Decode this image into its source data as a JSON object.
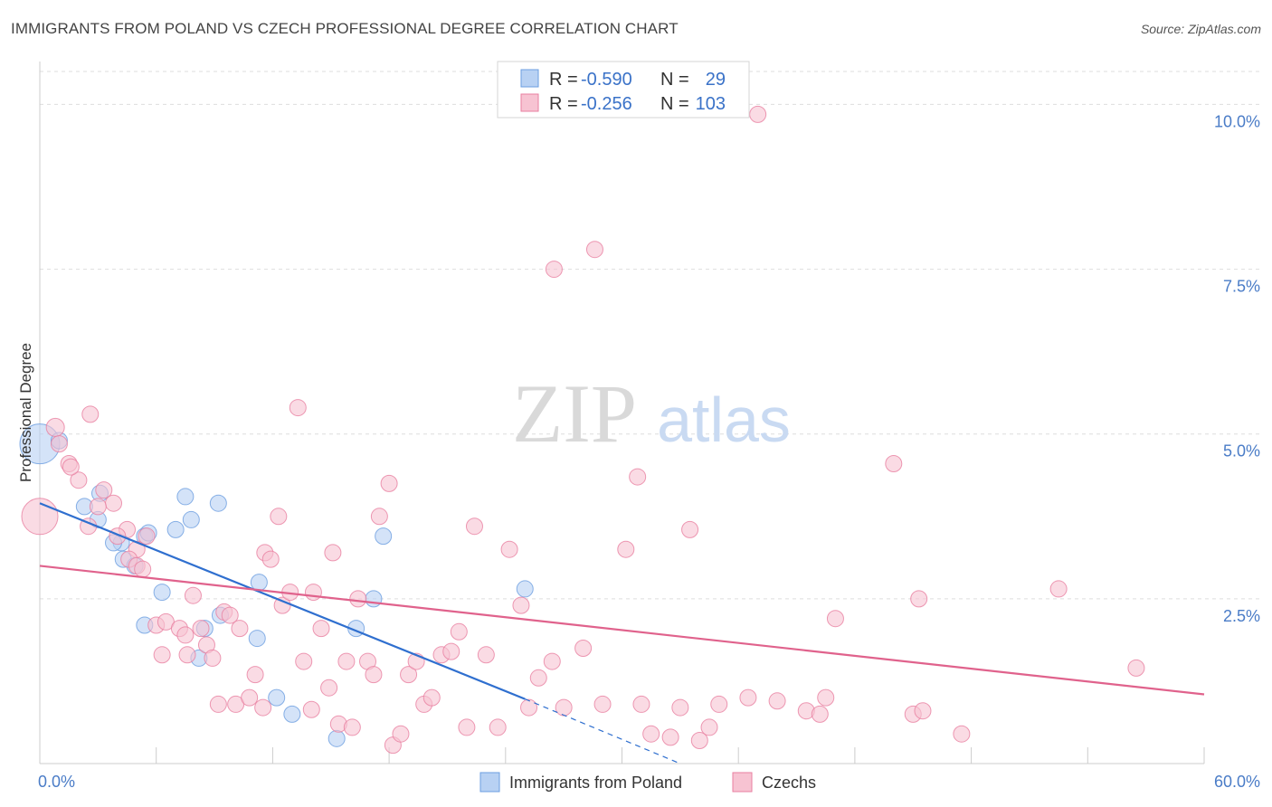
{
  "title": "IMMIGRANTS FROM POLAND VS CZECH PROFESSIONAL DEGREE CORRELATION CHART",
  "source": "Source: ZipAtlas.com",
  "watermark": {
    "zip": "ZIP",
    "atlas": "atlas"
  },
  "chart_data": {
    "type": "scatter",
    "title": "IMMIGRANTS FROM POLAND VS CZECH PROFESSIONAL DEGREE CORRELATION CHART",
    "xlabel": "",
    "ylabel": "Professional Degree",
    "xlim": [
      0,
      60
    ],
    "ylim": [
      0,
      10.5
    ],
    "x_tick_labels": [
      "0.0%",
      "60.0%"
    ],
    "y_ticks": [
      2.5,
      5.0,
      7.5,
      10.0
    ],
    "y_tick_labels": [
      "2.5%",
      "5.0%",
      "7.5%",
      "10.0%"
    ],
    "grid": "horizontal dashed",
    "legend_placement": "top-center",
    "stats": [
      {
        "r_label": "R =",
        "r": "-0.590",
        "n_label": "N =",
        "n": "29"
      },
      {
        "r_label": "R =",
        "r": "-0.256",
        "n_label": "N =",
        "n": "103"
      }
    ],
    "series": [
      {
        "name": "Immigrants from Poland",
        "color": "#6b9ee0",
        "fill": "#b8d1f3",
        "line_color": "#2f6fcf",
        "trend": {
          "x0": 0,
          "y0": 3.95,
          "x1": 25,
          "y1": 0.98,
          "dash_x1": 33,
          "dash_y1": 0.0
        },
        "points": [
          [
            0.0,
            4.85,
            22
          ],
          [
            1.0,
            4.9,
            9
          ],
          [
            2.3,
            3.9,
            9
          ],
          [
            3.1,
            4.1,
            9
          ],
          [
            3.0,
            3.7,
            9
          ],
          [
            4.2,
            3.35,
            9
          ],
          [
            3.8,
            3.35,
            9
          ],
          [
            4.3,
            3.1,
            9
          ],
          [
            4.9,
            3.0,
            9
          ],
          [
            5.4,
            3.45,
            9
          ],
          [
            5.6,
            3.5,
            9
          ],
          [
            7.5,
            4.05,
            9
          ],
          [
            7.8,
            3.7,
            9
          ],
          [
            7.0,
            3.55,
            9
          ],
          [
            9.2,
            3.95,
            9
          ],
          [
            6.3,
            2.6,
            9
          ],
          [
            5.4,
            2.1,
            9
          ],
          [
            8.5,
            2.05,
            9
          ],
          [
            9.3,
            2.25,
            9
          ],
          [
            8.2,
            1.6,
            9
          ],
          [
            11.3,
            2.75,
            9
          ],
          [
            11.2,
            1.9,
            9
          ],
          [
            12.2,
            1.0,
            9
          ],
          [
            13.0,
            0.75,
            9
          ],
          [
            15.3,
            0.38,
            9
          ],
          [
            16.3,
            2.05,
            9
          ],
          [
            17.2,
            2.5,
            9
          ],
          [
            17.7,
            3.45,
            9
          ],
          [
            25.0,
            2.65,
            9
          ]
        ]
      },
      {
        "name": "Czechs",
        "color": "#e87fa0",
        "fill": "#f7c3d2",
        "line_color": "#e0628c",
        "trend": {
          "x0": 0,
          "y0": 3.0,
          "x1": 60,
          "y1": 1.05
        },
        "points": [
          [
            0.0,
            3.75,
            20
          ],
          [
            0.8,
            5.1,
            10
          ],
          [
            1.0,
            4.85,
            9
          ],
          [
            2.6,
            5.3,
            9
          ],
          [
            1.5,
            4.55,
            9
          ],
          [
            2.0,
            4.3,
            9
          ],
          [
            1.6,
            4.5,
            9
          ],
          [
            3.3,
            4.15,
            9
          ],
          [
            3.8,
            3.95,
            9
          ],
          [
            3.0,
            3.9,
            9
          ],
          [
            2.5,
            3.6,
            9
          ],
          [
            4.5,
            3.55,
            9
          ],
          [
            4.0,
            3.45,
            9
          ],
          [
            5.5,
            3.45,
            9
          ],
          [
            5.0,
            3.25,
            9
          ],
          [
            4.6,
            3.1,
            9
          ],
          [
            5.0,
            3.0,
            9
          ],
          [
            5.3,
            2.95,
            9
          ],
          [
            6.3,
            1.65,
            9
          ],
          [
            6.0,
            2.1,
            9
          ],
          [
            6.5,
            2.15,
            9
          ],
          [
            7.2,
            2.05,
            9
          ],
          [
            7.5,
            1.95,
            9
          ],
          [
            7.6,
            1.65,
            9
          ],
          [
            7.9,
            2.55,
            9
          ],
          [
            8.3,
            2.05,
            9
          ],
          [
            8.6,
            1.8,
            9
          ],
          [
            8.9,
            1.6,
            9
          ],
          [
            9.2,
            0.9,
            9
          ],
          [
            9.5,
            2.3,
            9
          ],
          [
            9.8,
            2.25,
            9
          ],
          [
            10.1,
            0.9,
            9
          ],
          [
            10.3,
            2.05,
            9
          ],
          [
            10.8,
            1.0,
            9
          ],
          [
            11.1,
            1.35,
            9
          ],
          [
            11.5,
            0.85,
            9
          ],
          [
            11.6,
            3.2,
            9
          ],
          [
            11.9,
            3.1,
            9
          ],
          [
            12.3,
            3.75,
            9
          ],
          [
            12.5,
            2.4,
            9
          ],
          [
            12.9,
            2.6,
            9
          ],
          [
            13.3,
            5.4,
            9
          ],
          [
            13.6,
            1.55,
            9
          ],
          [
            14.0,
            0.82,
            9
          ],
          [
            14.1,
            2.6,
            9
          ],
          [
            14.5,
            2.05,
            9
          ],
          [
            14.9,
            1.15,
            9
          ],
          [
            15.1,
            3.2,
            9
          ],
          [
            15.4,
            0.6,
            9
          ],
          [
            15.8,
            1.55,
            9
          ],
          [
            16.1,
            0.55,
            9
          ],
          [
            16.4,
            2.5,
            9
          ],
          [
            16.9,
            1.55,
            9
          ],
          [
            17.2,
            1.35,
            9
          ],
          [
            17.5,
            3.75,
            9
          ],
          [
            18.0,
            4.25,
            9
          ],
          [
            18.2,
            0.28,
            9
          ],
          [
            18.6,
            0.45,
            9
          ],
          [
            19.0,
            1.35,
            9
          ],
          [
            19.4,
            1.55,
            9
          ],
          [
            19.8,
            0.9,
            9
          ],
          [
            20.2,
            1.0,
            9
          ],
          [
            20.7,
            1.65,
            9
          ],
          [
            21.2,
            1.7,
            9
          ],
          [
            21.6,
            2.0,
            9
          ],
          [
            22.0,
            0.55,
            9
          ],
          [
            22.4,
            3.6,
            9
          ],
          [
            23.0,
            1.65,
            9
          ],
          [
            23.6,
            0.55,
            9
          ],
          [
            24.2,
            3.25,
            9
          ],
          [
            24.8,
            2.4,
            9
          ],
          [
            25.2,
            0.85,
            9
          ],
          [
            25.7,
            1.3,
            9
          ],
          [
            26.4,
            1.55,
            9
          ],
          [
            27.0,
            0.85,
            9
          ],
          [
            26.5,
            7.5,
            9
          ],
          [
            28.0,
            1.75,
            9
          ],
          [
            28.6,
            7.8,
            9
          ],
          [
            29.0,
            0.9,
            9
          ],
          [
            30.2,
            3.25,
            9
          ],
          [
            30.8,
            4.35,
            9
          ],
          [
            31.0,
            0.9,
            9
          ],
          [
            31.5,
            0.45,
            9
          ],
          [
            32.5,
            0.4,
            9
          ],
          [
            33.0,
            0.85,
            9
          ],
          [
            33.5,
            3.55,
            9
          ],
          [
            34.0,
            0.35,
            9
          ],
          [
            34.5,
            0.55,
            9
          ],
          [
            35.0,
            0.9,
            9
          ],
          [
            36.5,
            1.0,
            9
          ],
          [
            37.0,
            9.85,
            9
          ],
          [
            38.0,
            0.95,
            9
          ],
          [
            39.5,
            0.8,
            9
          ],
          [
            40.5,
            1.0,
            9
          ],
          [
            41.0,
            2.2,
            9
          ],
          [
            44.0,
            4.55,
            9
          ],
          [
            45.0,
            0.75,
            9
          ],
          [
            45.5,
            0.8,
            9
          ],
          [
            45.3,
            2.5,
            9
          ],
          [
            47.5,
            0.45,
            9
          ],
          [
            52.5,
            2.65,
            9
          ],
          [
            56.5,
            1.45,
            9
          ],
          [
            40.2,
            0.75,
            9
          ]
        ]
      }
    ]
  }
}
